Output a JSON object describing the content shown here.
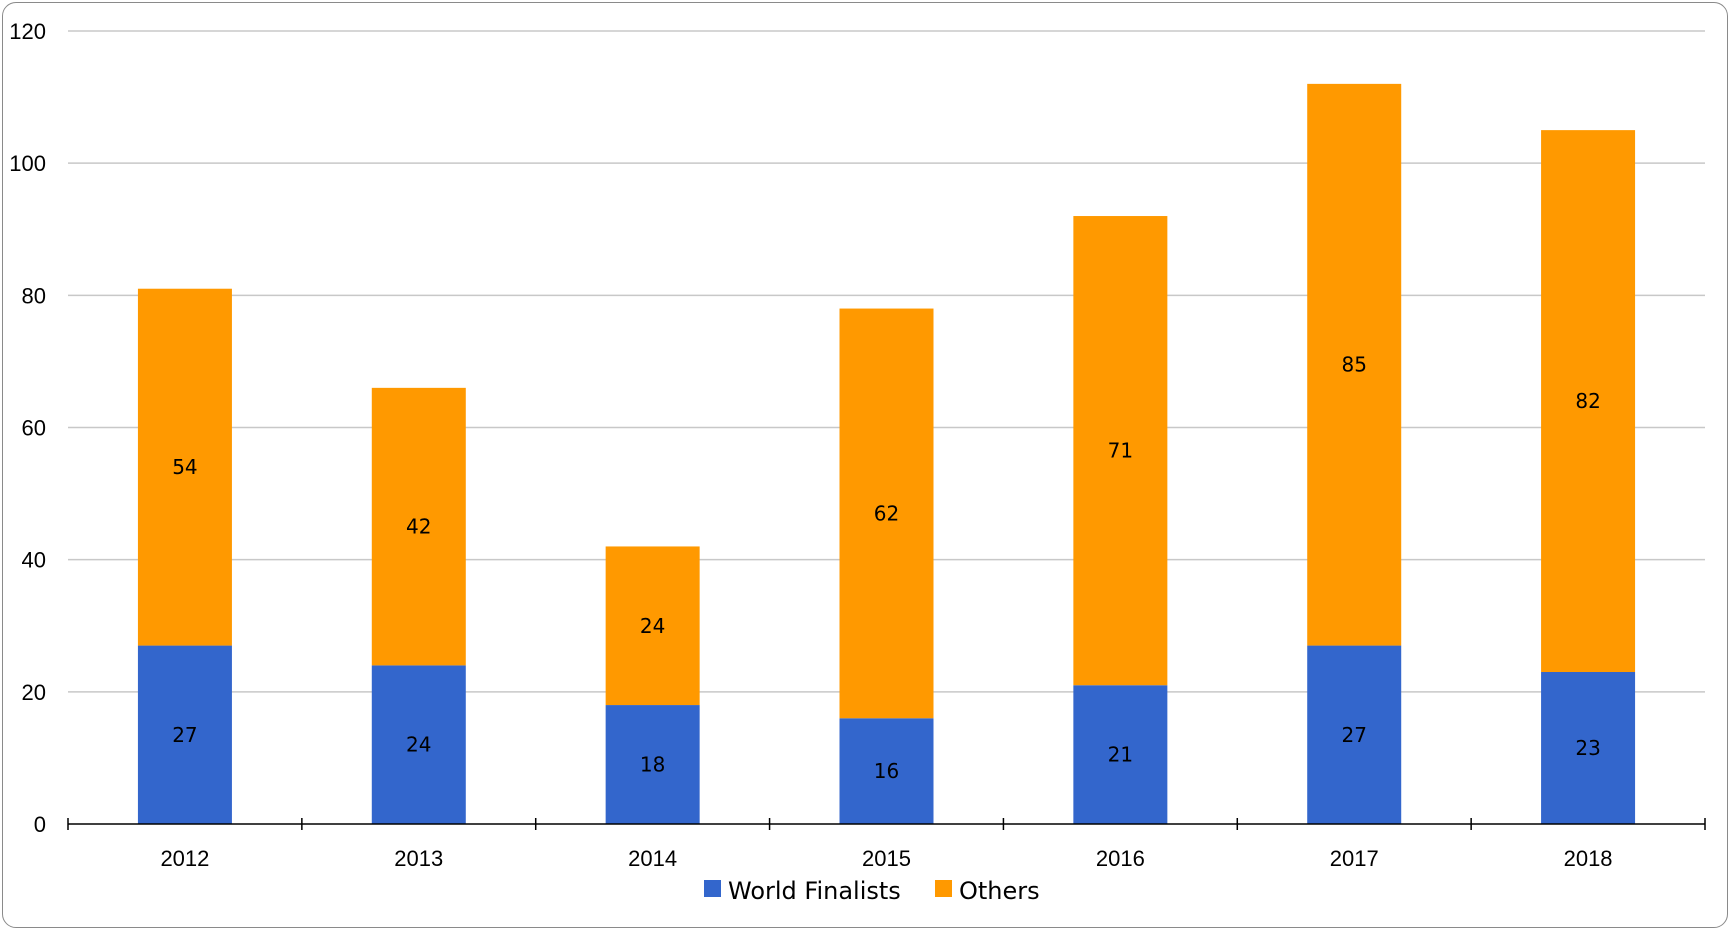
{
  "chart_data": {
    "type": "bar",
    "stacked": true,
    "categories": [
      "2012",
      "2013",
      "2014",
      "2015",
      "2016",
      "2017",
      "2018"
    ],
    "series": [
      {
        "name": "World Finalists",
        "values": [
          27,
          24,
          18,
          16,
          21,
          27,
          23
        ],
        "color": "#3366cc"
      },
      {
        "name": "Others",
        "values": [
          54,
          42,
          24,
          62,
          71,
          85,
          82
        ],
        "color": "#ff9900"
      }
    ],
    "y_ticks": [
      "0",
      "20",
      "40",
      "60",
      "80",
      "100",
      "120"
    ],
    "ylim": [
      0,
      120
    ],
    "grid": true,
    "legend_position": "bottom",
    "gridline_color": "#c8c8c8",
    "axis_color": "#000000"
  }
}
